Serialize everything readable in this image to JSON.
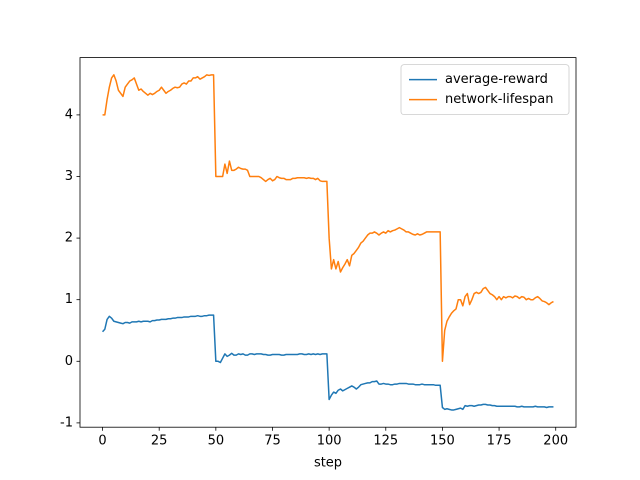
{
  "chart_data": {
    "type": "line",
    "x_label": "step",
    "x": [
      0,
      1,
      2,
      3,
      4,
      5,
      6,
      7,
      8,
      9,
      10,
      11,
      12,
      13,
      14,
      15,
      16,
      17,
      18,
      19,
      20,
      21,
      22,
      23,
      24,
      25,
      26,
      27,
      28,
      29,
      30,
      31,
      32,
      33,
      34,
      35,
      36,
      37,
      38,
      39,
      40,
      41,
      42,
      43,
      44,
      45,
      46,
      47,
      48,
      49,
      50,
      51,
      52,
      53,
      54,
      55,
      56,
      57,
      58,
      59,
      60,
      61,
      62,
      63,
      64,
      65,
      66,
      67,
      68,
      69,
      70,
      71,
      72,
      73,
      74,
      75,
      76,
      77,
      78,
      79,
      80,
      81,
      82,
      83,
      84,
      85,
      86,
      87,
      88,
      89,
      90,
      91,
      92,
      93,
      94,
      95,
      96,
      97,
      98,
      99,
      100,
      101,
      102,
      103,
      104,
      105,
      106,
      107,
      108,
      109,
      110,
      111,
      112,
      113,
      114,
      115,
      116,
      117,
      118,
      119,
      120,
      121,
      122,
      123,
      124,
      125,
      126,
      127,
      128,
      129,
      130,
      131,
      132,
      133,
      134,
      135,
      136,
      137,
      138,
      139,
      140,
      141,
      142,
      143,
      144,
      145,
      146,
      147,
      148,
      149,
      150,
      151,
      152,
      153,
      154,
      155,
      156,
      157,
      158,
      159,
      160,
      161,
      162,
      163,
      164,
      165,
      166,
      167,
      168,
      169,
      170,
      171,
      172,
      173,
      174,
      175,
      176,
      177,
      178,
      179,
      180,
      181,
      182,
      183,
      184,
      185,
      186,
      187,
      188,
      189,
      190,
      191,
      192,
      193,
      194,
      195,
      196,
      197,
      198,
      199
    ],
    "series": [
      {
        "name": "average-reward",
        "color": "#1f77b4",
        "values": [
          0.48,
          0.52,
          0.68,
          0.73,
          0.7,
          0.65,
          0.64,
          0.63,
          0.62,
          0.61,
          0.63,
          0.63,
          0.62,
          0.64,
          0.64,
          0.64,
          0.65,
          0.64,
          0.65,
          0.65,
          0.65,
          0.64,
          0.66,
          0.66,
          0.67,
          0.67,
          0.68,
          0.68,
          0.68,
          0.69,
          0.69,
          0.7,
          0.7,
          0.71,
          0.71,
          0.71,
          0.72,
          0.72,
          0.72,
          0.73,
          0.73,
          0.73,
          0.74,
          0.73,
          0.73,
          0.74,
          0.74,
          0.75,
          0.75,
          0.75,
          0.0,
          0.0,
          -0.02,
          0.05,
          0.12,
          0.08,
          0.1,
          0.13,
          0.1,
          0.1,
          0.12,
          0.11,
          0.12,
          0.1,
          0.1,
          0.12,
          0.12,
          0.11,
          0.12,
          0.12,
          0.12,
          0.11,
          0.11,
          0.1,
          0.1,
          0.11,
          0.11,
          0.11,
          0.11,
          0.1,
          0.1,
          0.11,
          0.11,
          0.11,
          0.11,
          0.11,
          0.11,
          0.12,
          0.12,
          0.11,
          0.11,
          0.12,
          0.11,
          0.12,
          0.11,
          0.12,
          0.11,
          0.12,
          0.12,
          0.12,
          -0.62,
          -0.55,
          -0.5,
          -0.52,
          -0.47,
          -0.45,
          -0.48,
          -0.46,
          -0.44,
          -0.42,
          -0.4,
          -0.42,
          -0.45,
          -0.42,
          -0.38,
          -0.37,
          -0.36,
          -0.35,
          -0.35,
          -0.33,
          -0.33,
          -0.32,
          -0.37,
          -0.37,
          -0.36,
          -0.37,
          -0.37,
          -0.38,
          -0.38,
          -0.37,
          -0.37,
          -0.36,
          -0.36,
          -0.36,
          -0.36,
          -0.37,
          -0.37,
          -0.37,
          -0.38,
          -0.38,
          -0.38,
          -0.37,
          -0.38,
          -0.38,
          -0.38,
          -0.38,
          -0.38,
          -0.39,
          -0.39,
          -0.39,
          -0.75,
          -0.78,
          -0.77,
          -0.78,
          -0.79,
          -0.79,
          -0.78,
          -0.77,
          -0.76,
          -0.78,
          -0.72,
          -0.73,
          -0.72,
          -0.72,
          -0.73,
          -0.72,
          -0.71,
          -0.71,
          -0.7,
          -0.7,
          -0.71,
          -0.71,
          -0.72,
          -0.72,
          -0.73,
          -0.73,
          -0.73,
          -0.73,
          -0.73,
          -0.73,
          -0.73,
          -0.73,
          -0.73,
          -0.74,
          -0.74,
          -0.73,
          -0.74,
          -0.74,
          -0.74,
          -0.74,
          -0.74,
          -0.73,
          -0.74,
          -0.74,
          -0.74,
          -0.74,
          -0.75,
          -0.74,
          -0.74,
          -0.74
        ]
      },
      {
        "name": "network-lifespan",
        "color": "#ff7f0e",
        "values": [
          4.0,
          4.0,
          4.25,
          4.45,
          4.6,
          4.65,
          4.55,
          4.4,
          4.35,
          4.3,
          4.45,
          4.5,
          4.55,
          4.57,
          4.6,
          4.5,
          4.4,
          4.42,
          4.38,
          4.35,
          4.32,
          4.35,
          4.33,
          4.35,
          4.38,
          4.4,
          4.45,
          4.4,
          4.35,
          4.38,
          4.4,
          4.43,
          4.45,
          4.44,
          4.45,
          4.5,
          4.52,
          4.5,
          4.55,
          4.55,
          4.6,
          4.6,
          4.62,
          4.58,
          4.6,
          4.62,
          4.65,
          4.64,
          4.65,
          4.65,
          3.0,
          3.0,
          3.0,
          3.0,
          3.2,
          3.05,
          3.25,
          3.1,
          3.1,
          3.12,
          3.15,
          3.13,
          3.12,
          3.12,
          3.1,
          3.0,
          3.0,
          3.0,
          3.0,
          3.0,
          2.98,
          2.95,
          2.92,
          2.95,
          2.97,
          2.93,
          2.95,
          3.0,
          2.98,
          2.97,
          2.97,
          2.95,
          2.95,
          2.95,
          2.97,
          2.97,
          2.98,
          2.98,
          2.98,
          2.98,
          2.97,
          2.98,
          2.97,
          2.97,
          2.95,
          2.97,
          2.93,
          2.92,
          2.92,
          2.92,
          2.0,
          1.5,
          1.65,
          1.5,
          1.62,
          1.45,
          1.52,
          1.58,
          1.65,
          1.55,
          1.72,
          1.75,
          1.8,
          1.85,
          1.92,
          1.95,
          2.0,
          2.05,
          2.08,
          2.08,
          2.1,
          2.08,
          2.05,
          2.08,
          2.1,
          2.08,
          2.12,
          2.1,
          2.12,
          2.13,
          2.15,
          2.17,
          2.15,
          2.13,
          2.1,
          2.1,
          2.08,
          2.06,
          2.05,
          2.07,
          2.05,
          2.06,
          2.08,
          2.1,
          2.1,
          2.1,
          2.1,
          2.1,
          2.1,
          2.1,
          0.0,
          0.5,
          0.65,
          0.72,
          0.78,
          0.82,
          0.85,
          1.0,
          1.0,
          0.9,
          1.05,
          1.1,
          0.92,
          1.0,
          1.1,
          1.12,
          1.1,
          1.12,
          1.18,
          1.2,
          1.15,
          1.1,
          1.08,
          1.05,
          1.0,
          1.05,
          1.0,
          1.05,
          1.03,
          1.05,
          1.05,
          1.03,
          1.06,
          1.05,
          1.02,
          1.05,
          1.04,
          1.0,
          1.02,
          1.0,
          1.0,
          1.03,
          1.05,
          1.02,
          0.98,
          0.97,
          0.95,
          0.92,
          0.95,
          0.97
        ]
      }
    ],
    "xlim": [
      -9.95,
      208.95
    ],
    "ylim": [
      -1.07,
      4.93
    ],
    "xticks": [
      0,
      25,
      50,
      75,
      100,
      125,
      150,
      175,
      200
    ],
    "yticks": [
      -1,
      0,
      1,
      2,
      3,
      4
    ],
    "legend": "upper right"
  }
}
